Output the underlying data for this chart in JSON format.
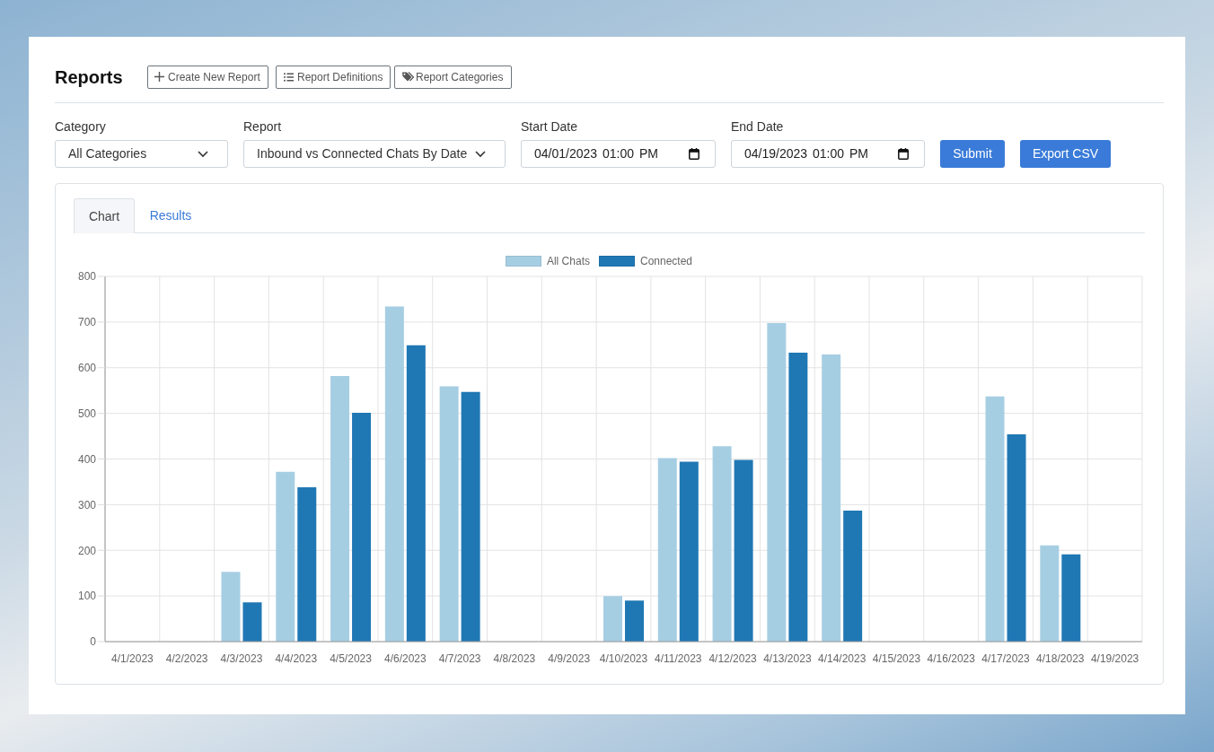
{
  "chart_data": {
    "type": "bar",
    "title": "Reports",
    "annotations": [
      "Create New Report",
      "Report Definitions",
      "Report Categories",
      "Category",
      "All Categories",
      "Report",
      "Inbound vs Connected Chats By Date",
      "Start Date",
      "04/01/2023 01:00 PM",
      "End Date",
      "04/19/2023 01:00 PM",
      "Submit",
      "Export CSV",
      "Chart",
      "Results"
    ],
    "categories": [
      "4/1/2023",
      "4/2/2023",
      "4/3/2023",
      "4/4/2023",
      "4/5/2023",
      "4/6/2023",
      "4/7/2023",
      "4/8/2023",
      "4/9/2023",
      "4/10/2023",
      "4/11/2023",
      "4/12/2023",
      "4/13/2023",
      "4/14/2023",
      "4/15/2023",
      "4/16/2023",
      "4/17/2023",
      "4/18/2023",
      "4/19/2023"
    ],
    "series": [
      {
        "name": "All Chats",
        "color": "#a6cee3",
        "values": [
          0,
          0,
          153,
          372,
          582,
          734,
          559,
          0,
          0,
          100,
          402,
          428,
          698,
          629,
          0,
          0,
          537,
          211,
          0
        ]
      },
      {
        "name": "Connected",
        "color": "#1f78b4",
        "values": [
          0,
          0,
          86,
          338,
          501,
          649,
          547,
          0,
          0,
          90,
          394,
          398,
          633,
          287,
          0,
          0,
          454,
          191,
          0
        ]
      }
    ],
    "ylim": [
      0,
      800
    ],
    "yticks": [
      0,
      100,
      200,
      300,
      400,
      500,
      600,
      700,
      800
    ],
    "grid": true,
    "legend": "top"
  }
}
